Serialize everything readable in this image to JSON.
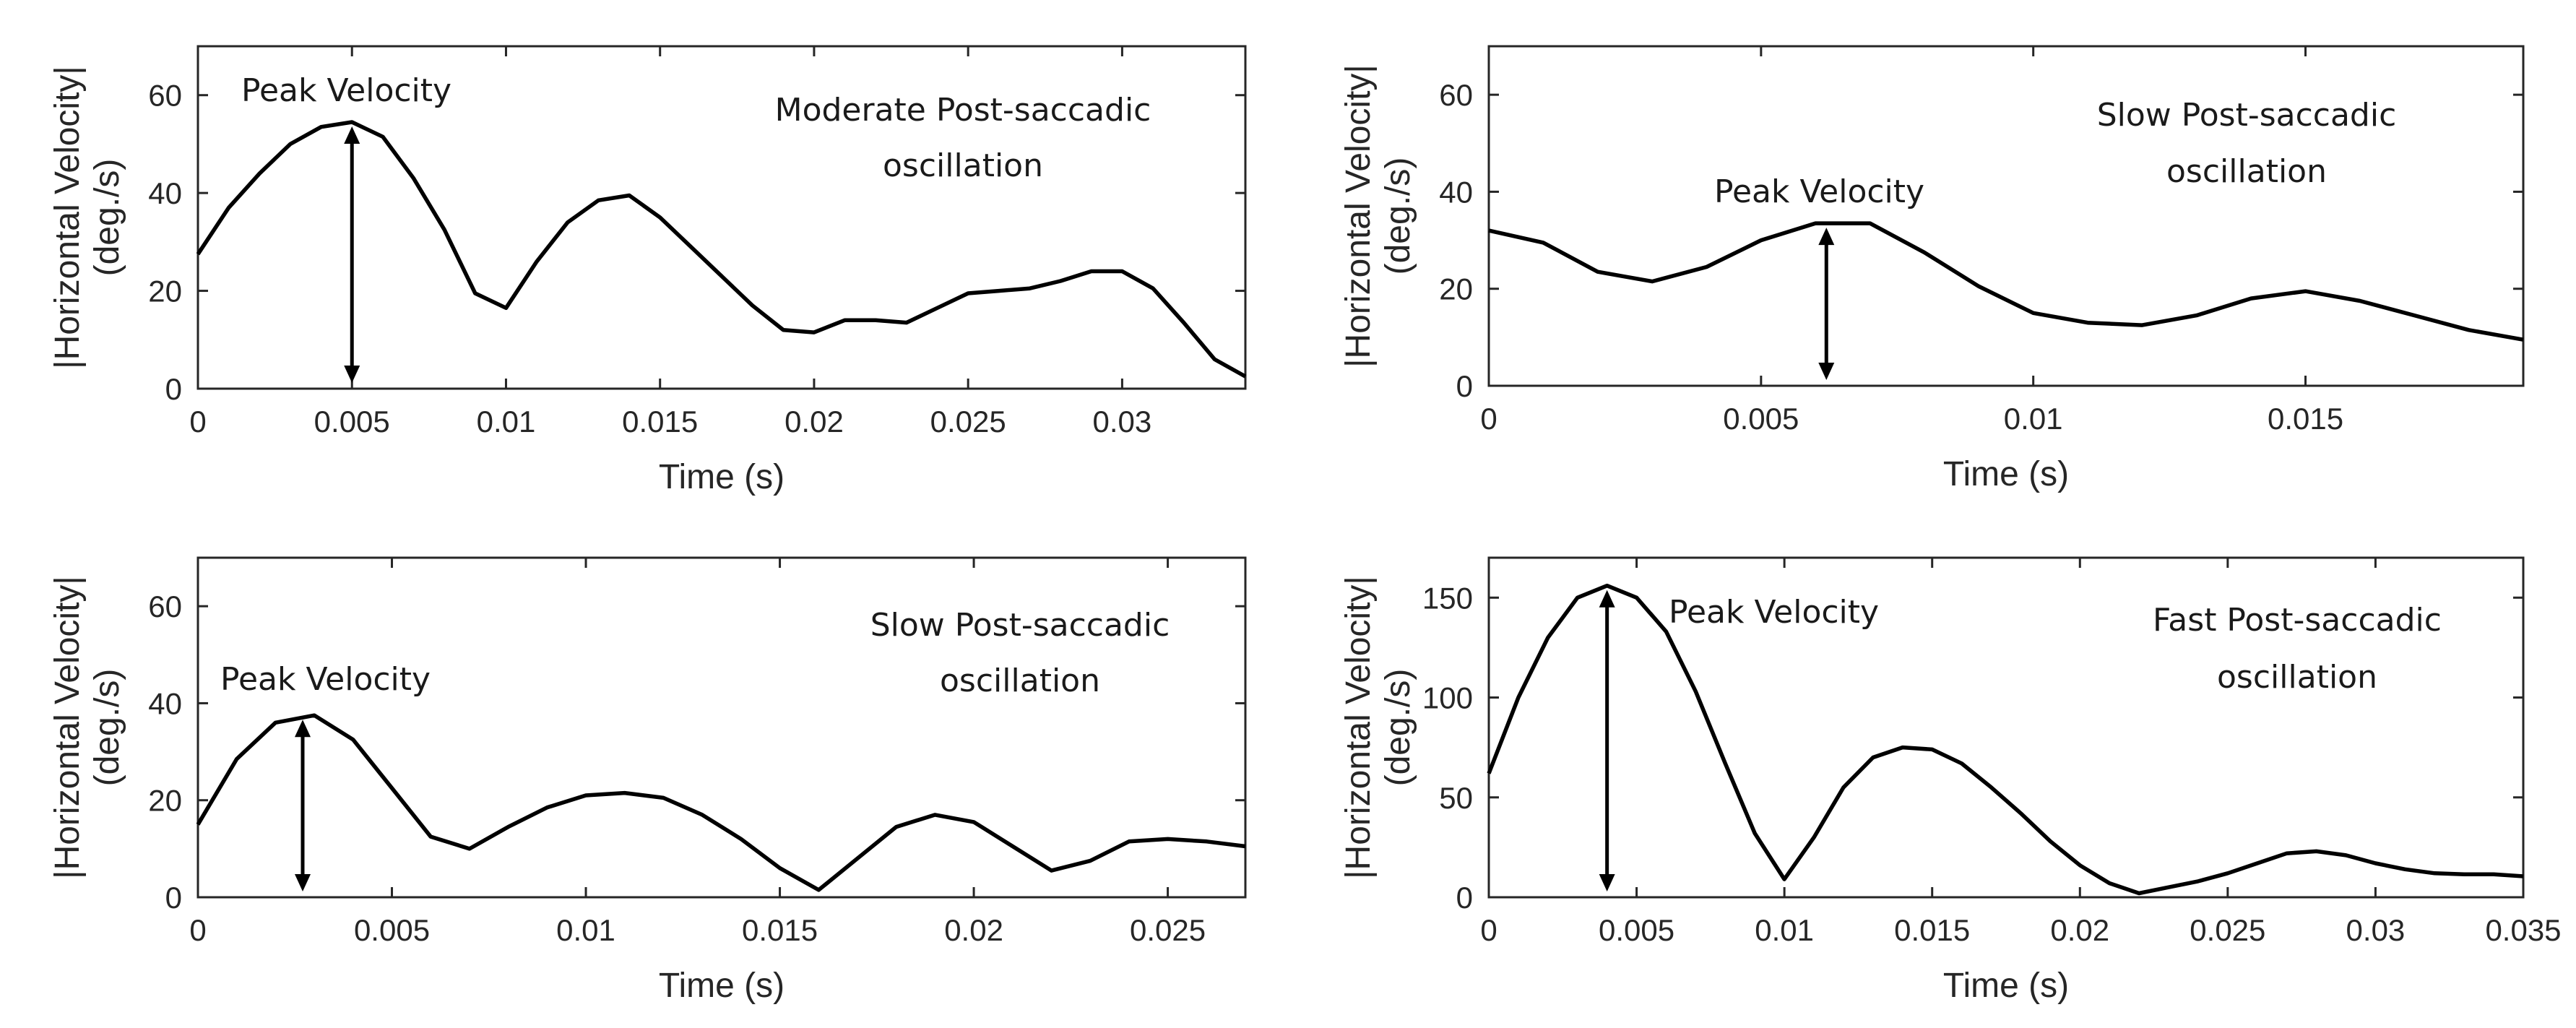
{
  "chart_data": [
    {
      "type": "line",
      "title": "",
      "xlabel": "Time (s)",
      "ylabel": [
        "|Horizontal Velocity|",
        "(deg./s)"
      ],
      "xlim": [
        0,
        0.034
      ],
      "ylim": [
        0,
        70
      ],
      "xticks": [
        0,
        0.005,
        0.01,
        0.015,
        0.02,
        0.025,
        0.03
      ],
      "xtick_labels": [
        "0",
        "0.005",
        "0.01",
        "0.015",
        "0.02",
        "0.025",
        "0.03"
      ],
      "yticks": [
        0,
        20,
        40,
        60
      ],
      "ytick_labels": [
        "0",
        "20",
        "40",
        "60"
      ],
      "series": [
        {
          "name": "velocity",
          "x": [
            0,
            0.001,
            0.002,
            0.003,
            0.004,
            0.005,
            0.006,
            0.007,
            0.008,
            0.009,
            0.01,
            0.011,
            0.012,
            0.013,
            0.014,
            0.015,
            0.016,
            0.017,
            0.018,
            0.019,
            0.02,
            0.021,
            0.022,
            0.023,
            0.024,
            0.025,
            0.026,
            0.027,
            0.028,
            0.029,
            0.03,
            0.031,
            0.032,
            0.033,
            0.034
          ],
          "y": [
            27.5,
            37,
            44,
            50,
            53.5,
            54.5,
            51.5,
            43,
            32.5,
            19.5,
            16.5,
            26,
            34,
            38.5,
            39.5,
            35,
            29,
            23,
            17,
            12,
            11.5,
            14,
            14,
            13.5,
            16.5,
            19.5,
            20,
            20.5,
            22,
            24,
            24,
            20.5,
            13.5,
            6,
            2.5
          ]
        }
      ],
      "annotations": {
        "peak_label": "Peak Velocity",
        "peak_x": 0.005,
        "peak_y": 54.5,
        "note_lines": [
          "Moderate Post-saccadic",
          "oscillation"
        ]
      }
    },
    {
      "type": "line",
      "title": "",
      "xlabel": "Time (s)",
      "ylabel": [
        "|Horizontal Velocity|",
        "(deg./s)"
      ],
      "xlim": [
        0,
        0.019
      ],
      "ylim": [
        0,
        70
      ],
      "xticks": [
        0,
        0.005,
        0.01,
        0.015
      ],
      "xtick_labels": [
        "0",
        "0.005",
        "0.01",
        "0.015"
      ],
      "yticks": [
        0,
        20,
        40,
        60
      ],
      "ytick_labels": [
        "0",
        "20",
        "40",
        "60"
      ],
      "series": [
        {
          "name": "velocity",
          "x": [
            0,
            0.001,
            0.002,
            0.003,
            0.004,
            0.005,
            0.006,
            0.007,
            0.008,
            0.009,
            0.01,
            0.011,
            0.012,
            0.013,
            0.014,
            0.015,
            0.016,
            0.017,
            0.018,
            0.019
          ],
          "y": [
            32,
            29.5,
            23.5,
            21.5,
            24.5,
            30,
            33.5,
            33.5,
            27.5,
            20.5,
            15,
            13,
            12.5,
            14.5,
            18,
            19.5,
            17.5,
            14.5,
            11.5,
            9.5
          ]
        }
      ],
      "annotations": {
        "peak_label": "Peak Velocity",
        "peak_x": 0.0062,
        "peak_y": 33.5,
        "note_lines": [
          "Slow Post-saccadic",
          "oscillation"
        ]
      }
    },
    {
      "type": "line",
      "title": "",
      "xlabel": "Time (s)",
      "ylabel": [
        "|Horizontal Velocity|",
        "(deg./s)"
      ],
      "xlim": [
        0,
        0.027
      ],
      "ylim": [
        0,
        70
      ],
      "xticks": [
        0,
        0.005,
        0.01,
        0.015,
        0.02,
        0.025
      ],
      "xtick_labels": [
        "0",
        "0.005",
        "0.01",
        "0.015",
        "0.02",
        "0.025"
      ],
      "yticks": [
        0,
        20,
        40,
        60
      ],
      "ytick_labels": [
        "0",
        "20",
        "40",
        "60"
      ],
      "series": [
        {
          "name": "velocity",
          "x": [
            0,
            0.001,
            0.002,
            0.003,
            0.004,
            0.005,
            0.006,
            0.007,
            0.008,
            0.009,
            0.01,
            0.011,
            0.012,
            0.013,
            0.014,
            0.015,
            0.016,
            0.017,
            0.018,
            0.019,
            0.02,
            0.021,
            0.022,
            0.023,
            0.024,
            0.025,
            0.026,
            0.027
          ],
          "y": [
            15,
            28.5,
            36,
            37.5,
            32.5,
            22.5,
            12.5,
            10,
            14.5,
            18.5,
            21,
            21.5,
            20.5,
            17,
            12,
            6,
            1.5,
            8,
            14.5,
            17,
            15.5,
            10.5,
            5.5,
            7.5,
            11.5,
            12,
            11.5,
            10.5
          ]
        }
      ],
      "annotations": {
        "peak_label": "Peak Velocity",
        "peak_x": 0.0027,
        "peak_y": 37.5,
        "note_lines": [
          "Slow Post-saccadic",
          "oscillation"
        ]
      }
    },
    {
      "type": "line",
      "title": "",
      "xlabel": "Time (s)",
      "ylabel": [
        "|Horizontal Velocity|",
        "(deg./s)"
      ],
      "xlim": [
        0,
        0.035
      ],
      "ylim": [
        0,
        170
      ],
      "xticks": [
        0,
        0.005,
        0.01,
        0.015,
        0.02,
        0.025,
        0.03,
        0.035
      ],
      "xtick_labels": [
        "0",
        "0.005",
        "0.01",
        "0.015",
        "0.02",
        "0.025",
        "0.03",
        "0.035"
      ],
      "yticks": [
        0,
        50,
        100,
        150
      ],
      "ytick_labels": [
        "0",
        "50",
        "100",
        "150"
      ],
      "series": [
        {
          "name": "velocity",
          "x": [
            0,
            0.001,
            0.002,
            0.003,
            0.004,
            0.005,
            0.006,
            0.007,
            0.008,
            0.009,
            0.01,
            0.011,
            0.012,
            0.013,
            0.014,
            0.015,
            0.016,
            0.017,
            0.018,
            0.019,
            0.02,
            0.021,
            0.022,
            0.023,
            0.024,
            0.025,
            0.026,
            0.027,
            0.028,
            0.029,
            0.03,
            0.031,
            0.032,
            0.033,
            0.034,
            0.035
          ],
          "y": [
            62,
            100,
            130,
            150,
            156,
            150,
            133,
            103,
            67,
            32,
            9,
            30,
            55,
            70,
            75,
            74,
            67,
            55,
            42,
            28,
            16,
            7,
            2,
            5,
            8,
            12,
            17,
            22,
            23,
            21,
            17,
            14,
            12,
            11.5,
            11.5,
            10.5
          ]
        }
      ],
      "annotations": {
        "peak_label": "Peak Velocity",
        "peak_x": 0.004,
        "peak_y": 156,
        "note_lines": [
          "Fast Post-saccadic",
          "oscillation"
        ]
      }
    }
  ]
}
